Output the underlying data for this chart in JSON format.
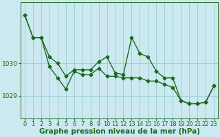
{
  "x": [
    0,
    1,
    2,
    3,
    4,
    5,
    6,
    7,
    8,
    9,
    10,
    11,
    12,
    13,
    14,
    15,
    16,
    17,
    18,
    19,
    20,
    21,
    22,
    23
  ],
  "series1": [
    1031.5,
    1030.8,
    1030.8,
    1030.2,
    1030.0,
    1029.6,
    1029.8,
    1029.8,
    1029.8,
    1030.05,
    1030.2,
    1029.7,
    1029.65,
    1030.8,
    1030.3,
    1030.2,
    1029.75,
    1029.55,
    1029.55,
    1028.85,
    1028.75,
    1028.75,
    1028.8,
    1029.3
  ],
  "series2": [
    1031.5,
    1030.8,
    1030.8,
    1029.9,
    1029.55,
    1029.2,
    1029.75,
    1029.65,
    1029.65,
    1029.85,
    1029.6,
    1029.6,
    1029.55,
    1029.55,
    1029.55,
    1029.45,
    1029.45,
    1029.35,
    1029.25,
    1028.85,
    1028.75,
    1028.75,
    1028.8,
    1029.3
  ],
  "line_color": "#1a6b1a",
  "marker": "D",
  "markersize": 2.5,
  "linewidth": 1.0,
  "background_color": "#cce8f0",
  "grid_color": "#88c8c8",
  "ylabel_ticks": [
    1029,
    1030
  ],
  "ylim": [
    1028.3,
    1031.9
  ],
  "xlabel": "Graphe pression niveau de la mer (hPa)",
  "xlabel_fontsize": 7.5,
  "tick_fontsize": 6.5,
  "title": ""
}
